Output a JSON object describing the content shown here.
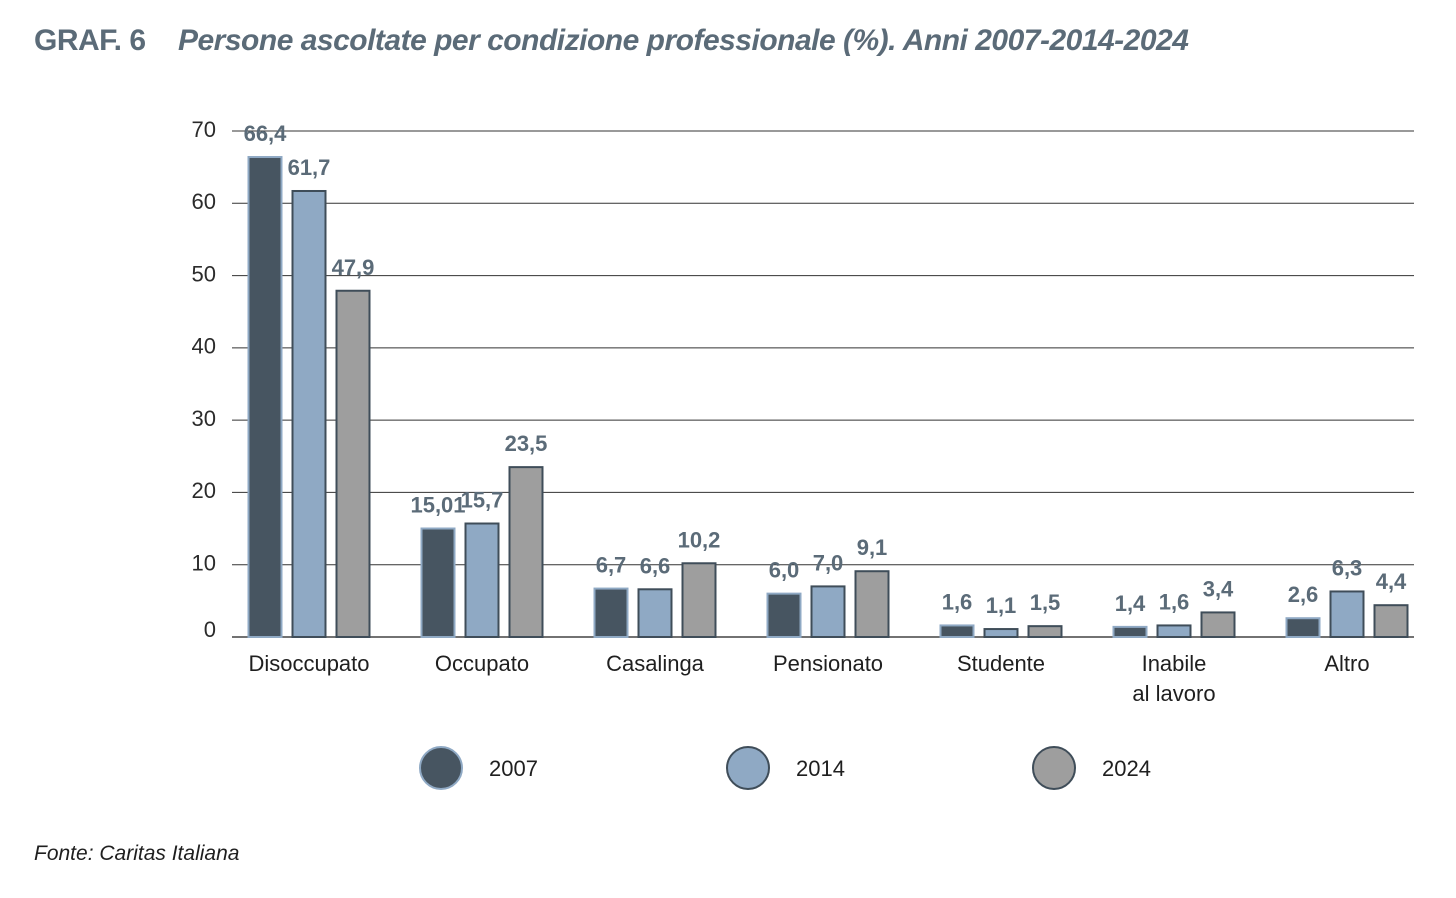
{
  "header": {
    "code": "GRAF. 6",
    "title": "Persone ascoltate per condizione professionale (%). Anni 2007-2014-2024"
  },
  "source": "Fonte: Caritas Italiana",
  "colors": {
    "2007": "#475561",
    "2014": "#8fa9c4",
    "2024": "#9e9e9e",
    "grid": "#333333",
    "label": "#5b6b78"
  },
  "chart_data": {
    "type": "bar",
    "categories": [
      [
        "Disoccupato"
      ],
      [
        "Occupato"
      ],
      [
        "Casalinga"
      ],
      [
        "Pensionato"
      ],
      [
        "Studente"
      ],
      [
        "Inabile",
        "al lavoro"
      ],
      [
        "Altro"
      ]
    ],
    "series": [
      {
        "name": "2007",
        "values": [
          66.4,
          15.01,
          6.7,
          6.0,
          1.6,
          1.4,
          2.6
        ],
        "labels": [
          "66,4",
          "15,01",
          "6,7",
          "6,0",
          "1,6",
          "1,4",
          "2,6"
        ]
      },
      {
        "name": "2014",
        "values": [
          61.7,
          15.7,
          6.6,
          7.0,
          1.1,
          1.6,
          6.3
        ],
        "labels": [
          "61,7",
          "15,7",
          "6,6",
          "7,0",
          "1,1",
          "1,6",
          "6,3"
        ]
      },
      {
        "name": "2024",
        "values": [
          47.9,
          23.5,
          10.2,
          9.1,
          1.5,
          3.4,
          4.4
        ],
        "labels": [
          "47,9",
          "23,5",
          "10,2",
          "9,1",
          "1,5",
          "3,4",
          "4,4"
        ]
      }
    ],
    "yticks": [
      0,
      10,
      20,
      30,
      40,
      50,
      60,
      70
    ],
    "ylim": [
      0,
      70
    ],
    "grid": true,
    "legend": "bottom"
  }
}
